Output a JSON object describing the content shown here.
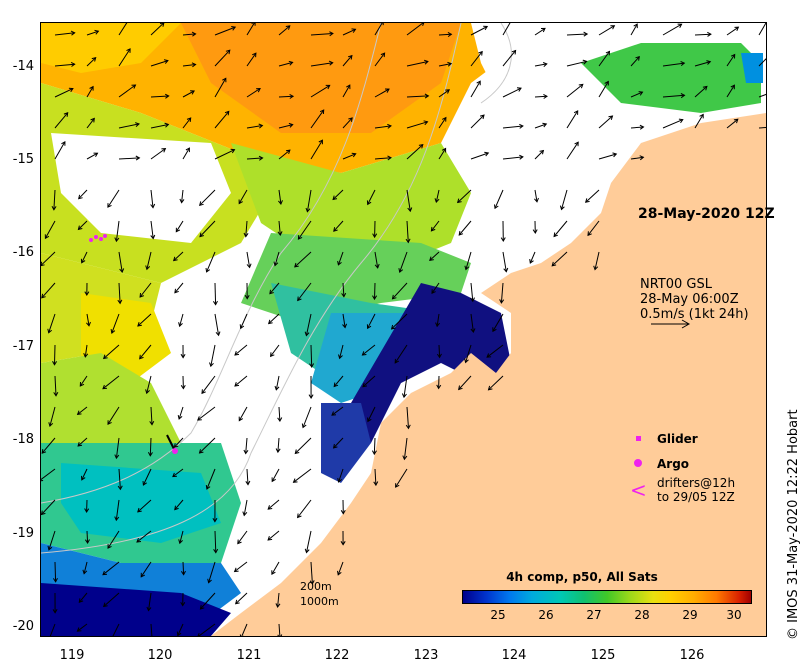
{
  "map": {
    "lon_ticks": [
      "119",
      "120",
      "121",
      "122",
      "123",
      "124",
      "125",
      "126"
    ],
    "lat_ticks": [
      "-14",
      "-15",
      "-16",
      "-17",
      "-18",
      "-19",
      "-20"
    ],
    "lon_range": [
      118.7,
      126.75
    ],
    "lat_range": [
      -20.1,
      -13.55
    ]
  },
  "annotations": {
    "date_label": "28-May-2020 12Z",
    "vector_lines": [
      "NRT00 GSL",
      "28-May 06:00Z",
      "0.5m/s (1kt 24h)"
    ],
    "contours": [
      "200m",
      "1000m"
    ]
  },
  "legend": {
    "glider_label": "Glider",
    "argo_label": "Argo",
    "drifters_line1": "drifters@12h",
    "drifters_line2": "to 29/05 12Z"
  },
  "colorbar": {
    "title": "4h comp, p50, All Sats",
    "ticks": [
      "25",
      "26",
      "27",
      "28",
      "29",
      "30"
    ]
  },
  "credit": "© IMOS 31-May-2020 12:22 Hobart",
  "colors": {
    "land": "#ffcc99",
    "marker": "#ee22ee",
    "no_data": "#ffffff"
  }
}
